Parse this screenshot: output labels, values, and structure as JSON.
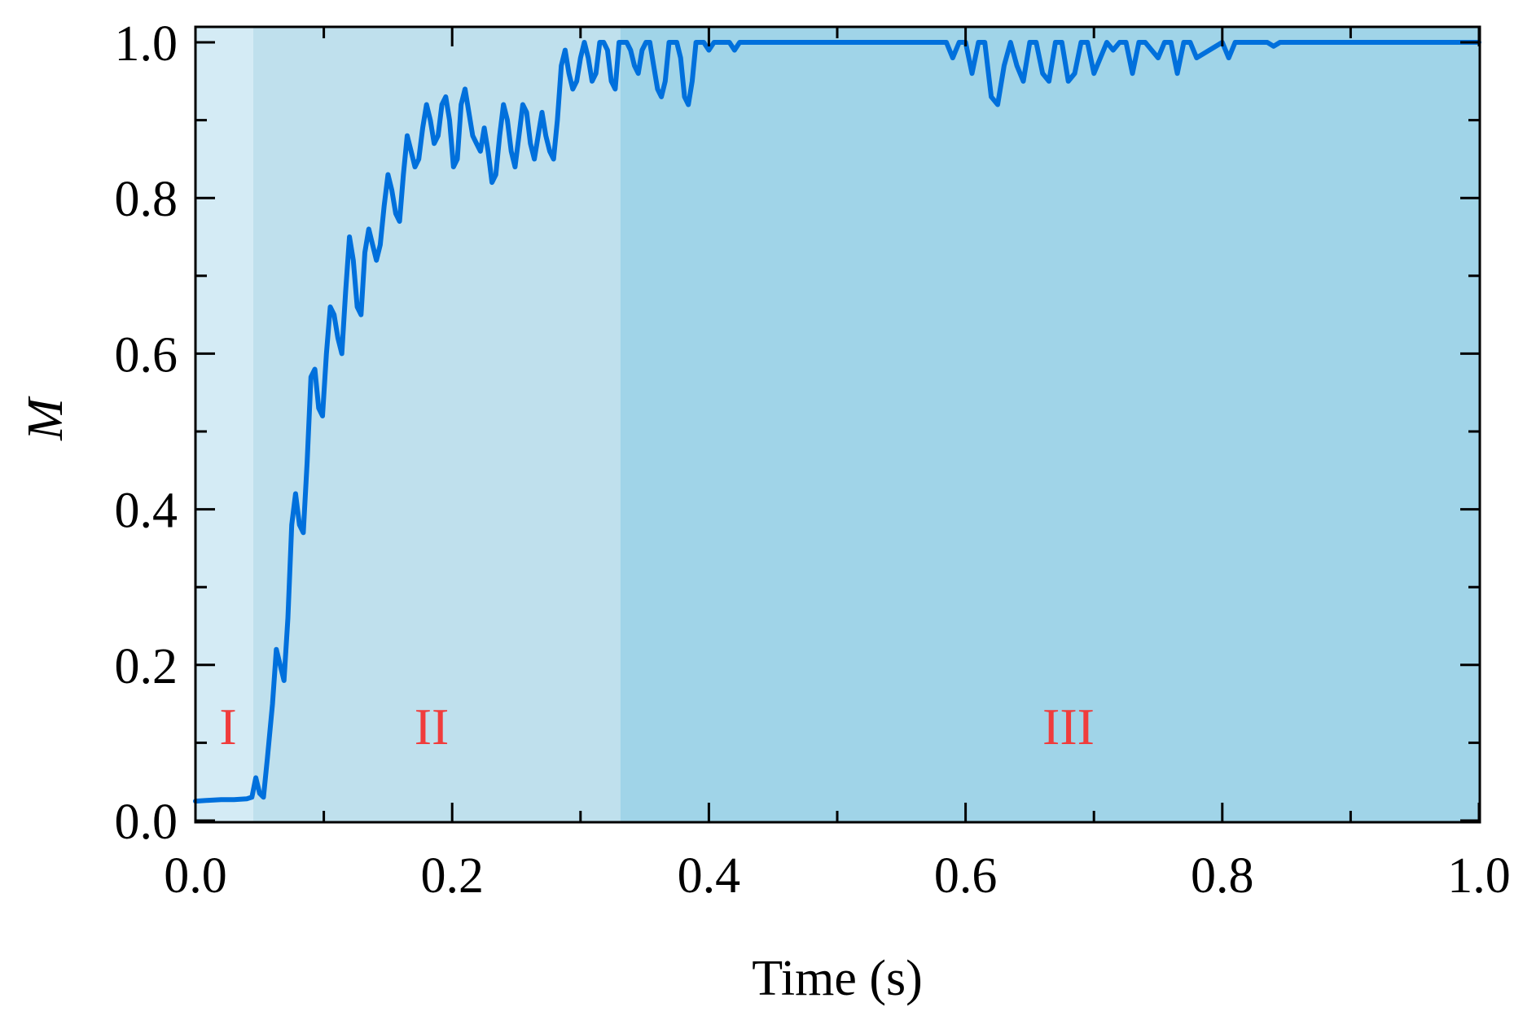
{
  "chart_data": {
    "type": "line",
    "title": "",
    "xlabel": "Time (s)",
    "ylabel": "M",
    "xlim": [
      0.0,
      1.0
    ],
    "ylim": [
      0.0,
      1.0
    ],
    "xticks": [
      "0.0",
      "0.2",
      "0.4",
      "0.6",
      "0.8",
      "1.0"
    ],
    "yticks": [
      "0.0",
      "0.2",
      "0.4",
      "0.6",
      "0.8",
      "1.0"
    ],
    "grid": false,
    "legend": null,
    "regions": [
      {
        "label": "I",
        "x_start": 0.0,
        "x_end": 0.045,
        "color": "#d4ebf5"
      },
      {
        "label": "II",
        "x_start": 0.045,
        "x_end": 0.331,
        "color": "#bfe0ed"
      },
      {
        "label": "III",
        "x_start": 0.331,
        "x_end": 1.0,
        "color": "#a0d4e8"
      }
    ],
    "region_label_color": "#f03c3c",
    "line_color": "#0070dc",
    "series": [
      {
        "name": "M",
        "x": [
          0.0,
          0.01,
          0.02,
          0.03,
          0.04,
          0.044,
          0.047,
          0.05,
          0.053,
          0.056,
          0.06,
          0.063,
          0.066,
          0.069,
          0.072,
          0.075,
          0.078,
          0.081,
          0.084,
          0.087,
          0.09,
          0.093,
          0.096,
          0.099,
          0.102,
          0.105,
          0.108,
          0.111,
          0.114,
          0.117,
          0.12,
          0.123,
          0.126,
          0.129,
          0.132,
          0.135,
          0.138,
          0.141,
          0.144,
          0.147,
          0.15,
          0.153,
          0.156,
          0.159,
          0.162,
          0.165,
          0.168,
          0.171,
          0.174,
          0.177,
          0.18,
          0.183,
          0.186,
          0.189,
          0.192,
          0.195,
          0.198,
          0.201,
          0.204,
          0.207,
          0.21,
          0.213,
          0.216,
          0.219,
          0.222,
          0.225,
          0.228,
          0.231,
          0.234,
          0.237,
          0.24,
          0.243,
          0.246,
          0.249,
          0.252,
          0.255,
          0.258,
          0.261,
          0.264,
          0.267,
          0.27,
          0.273,
          0.276,
          0.279,
          0.282,
          0.285,
          0.288,
          0.291,
          0.294,
          0.297,
          0.3,
          0.303,
          0.306,
          0.309,
          0.312,
          0.315,
          0.318,
          0.321,
          0.324,
          0.327,
          0.33,
          0.333,
          0.336,
          0.339,
          0.342,
          0.345,
          0.348,
          0.351,
          0.354,
          0.357,
          0.36,
          0.363,
          0.366,
          0.369,
          0.372,
          0.375,
          0.378,
          0.381,
          0.384,
          0.387,
          0.39,
          0.393,
          0.396,
          0.4,
          0.404,
          0.408,
          0.412,
          0.416,
          0.42,
          0.424,
          0.428,
          0.5,
          0.585,
          0.59,
          0.595,
          0.6,
          0.605,
          0.61,
          0.615,
          0.62,
          0.625,
          0.63,
          0.635,
          0.64,
          0.645,
          0.65,
          0.655,
          0.66,
          0.665,
          0.67,
          0.675,
          0.68,
          0.685,
          0.69,
          0.695,
          0.7,
          0.705,
          0.71,
          0.715,
          0.72,
          0.725,
          0.73,
          0.735,
          0.74,
          0.745,
          0.75,
          0.755,
          0.76,
          0.765,
          0.77,
          0.775,
          0.78,
          0.8,
          0.805,
          0.81,
          0.835,
          0.84,
          0.845,
          1.0
        ],
        "y": [
          0.025,
          0.026,
          0.027,
          0.027,
          0.028,
          0.03,
          0.055,
          0.035,
          0.03,
          0.08,
          0.15,
          0.22,
          0.2,
          0.18,
          0.26,
          0.38,
          0.42,
          0.38,
          0.37,
          0.46,
          0.57,
          0.58,
          0.53,
          0.52,
          0.6,
          0.66,
          0.65,
          0.62,
          0.6,
          0.68,
          0.75,
          0.72,
          0.66,
          0.65,
          0.73,
          0.76,
          0.74,
          0.72,
          0.74,
          0.79,
          0.83,
          0.81,
          0.78,
          0.77,
          0.83,
          0.88,
          0.86,
          0.84,
          0.85,
          0.89,
          0.92,
          0.9,
          0.87,
          0.88,
          0.92,
          0.93,
          0.9,
          0.84,
          0.85,
          0.92,
          0.94,
          0.91,
          0.88,
          0.87,
          0.86,
          0.89,
          0.86,
          0.82,
          0.83,
          0.88,
          0.92,
          0.9,
          0.86,
          0.84,
          0.88,
          0.92,
          0.91,
          0.87,
          0.85,
          0.88,
          0.91,
          0.88,
          0.86,
          0.85,
          0.9,
          0.97,
          0.99,
          0.96,
          0.94,
          0.95,
          0.98,
          1.0,
          0.98,
          0.95,
          0.96,
          1.0,
          1.0,
          0.99,
          0.95,
          0.94,
          1.0,
          1.0,
          1.0,
          0.99,
          0.97,
          0.96,
          0.99,
          1.0,
          1.0,
          0.97,
          0.94,
          0.93,
          0.95,
          1.0,
          1.0,
          1.0,
          0.98,
          0.93,
          0.92,
          0.95,
          1.0,
          1.0,
          1.0,
          0.99,
          1.0,
          1.0,
          1.0,
          1.0,
          0.99,
          1.0,
          1.0,
          1.0,
          1.0,
          0.98,
          1.0,
          1.0,
          0.96,
          1.0,
          1.0,
          0.93,
          0.92,
          0.97,
          1.0,
          0.97,
          0.95,
          1.0,
          1.0,
          0.96,
          0.95,
          1.0,
          1.0,
          0.95,
          0.96,
          1.0,
          1.0,
          0.96,
          0.98,
          1.0,
          0.99,
          1.0,
          1.0,
          0.96,
          1.0,
          1.0,
          0.99,
          0.98,
          1.0,
          1.0,
          0.96,
          1.0,
          1.0,
          0.98,
          1.0,
          0.98,
          1.0,
          1.0,
          0.995,
          1.0,
          1.0
        ]
      }
    ]
  },
  "labels": {
    "xlabel": "Time (s)",
    "ylabel": "M",
    "region_I": "I",
    "region_II": "II",
    "region_III": "III"
  }
}
